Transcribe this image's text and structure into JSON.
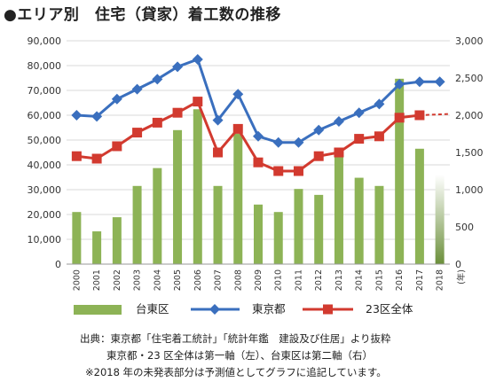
{
  "title": "●エリア別　住宅（貸家）着工数の推移",
  "chart_data": {
    "type": "bar+line",
    "categories": [
      "2000",
      "2001",
      "2002",
      "2003",
      "2004",
      "2005",
      "2006",
      "2007",
      "2008",
      "2009",
      "2010",
      "2011",
      "2012",
      "2013",
      "2014",
      "2015",
      "2016",
      "2017",
      "2018"
    ],
    "x_unit": "(年)",
    "y_left": {
      "ticks": [
        "0",
        "10,000",
        "20,000",
        "30,000",
        "40,000",
        "50,000",
        "60,000",
        "70,000",
        "80,000",
        "90,000"
      ],
      "ylim": [
        0,
        90000
      ]
    },
    "y_right": {
      "ticks": [
        "0",
        "500",
        "1,000",
        "1,500",
        "2,000",
        "2,500",
        "3,000"
      ],
      "ylim": [
        0,
        3000
      ]
    },
    "series": [
      {
        "name": "台東区",
        "type": "bar",
        "axis": "right",
        "color": "#8db356",
        "values": [
          700,
          440,
          630,
          1050,
          1290,
          1800,
          2080,
          1050,
          1750,
          800,
          700,
          1010,
          930,
          1500,
          1160,
          1050,
          2490,
          1550,
          1200
        ],
        "projected_index": 18
      },
      {
        "name": "東京都",
        "type": "line",
        "axis": "left",
        "color": "#3a6fbe",
        "marker": "diamond",
        "values": [
          60000,
          59500,
          66500,
          70500,
          74500,
          79500,
          82500,
          58000,
          68500,
          51500,
          49000,
          49000,
          54000,
          57500,
          61000,
          64500,
          72500,
          73500,
          73500
        ]
      },
      {
        "name": "23区全体",
        "type": "line",
        "axis": "left",
        "color": "#d23a2f",
        "marker": "square",
        "values": [
          43500,
          42500,
          47500,
          53000,
          57000,
          61000,
          65500,
          45000,
          54500,
          41000,
          37500,
          37500,
          43500,
          45000,
          50500,
          51500,
          59000,
          60000,
          60500
        ],
        "projected_index": 18
      }
    ]
  },
  "legend": {
    "bar": "台東区",
    "tokyo": "東京都",
    "ku": "23区全体"
  },
  "notes": {
    "line1": "出典：東京都「住宅着工統計」「統計年鑑　建設及び住居」より抜粋",
    "line2": "東京都・23 区全体は第一軸（左）、台東区は第二軸（右）",
    "line3": "※2018 年の未発表部分は予測値としてグラフに追記しています。"
  }
}
